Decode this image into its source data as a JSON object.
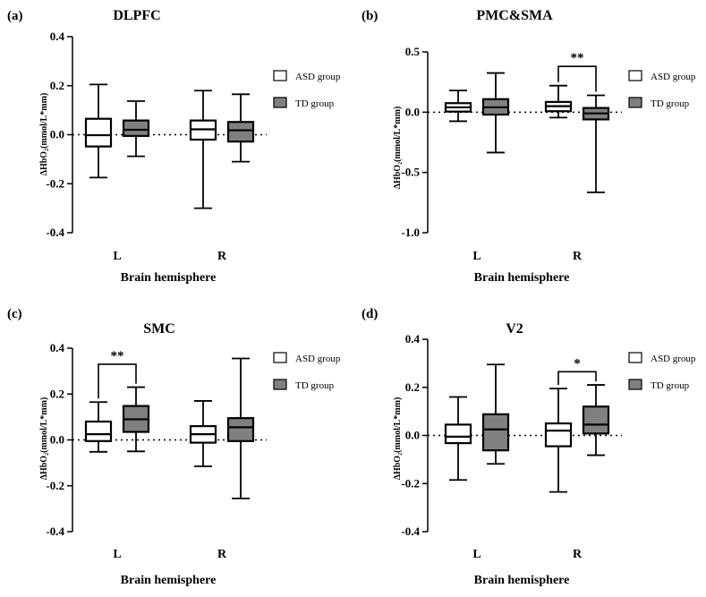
{
  "chart_data": [
    {
      "type": "box",
      "panel": "(a)",
      "title": "DLPFC",
      "xlabel": "Brain hemisphere",
      "ylabel": "ΔHbO₂(mmol/L*mm)",
      "ylim": [
        -0.4,
        0.4
      ],
      "yticks": [
        -0.4,
        -0.2,
        0.0,
        0.2,
        0.4
      ],
      "ytick_labels": [
        "-0.4",
        "-0.2",
        "0.0",
        "0.2",
        "0.4"
      ],
      "categories": [
        "L",
        "R"
      ],
      "reference_line": 0,
      "legend": [
        {
          "label": "ASD group",
          "fill": "#ffffff"
        },
        {
          "label": "TD group",
          "fill": "#808080"
        }
      ],
      "series": [
        {
          "name": "ASD group",
          "fill": "#ffffff",
          "boxes": [
            {
              "min": -0.175,
              "q1": -0.048,
              "median": -0.002,
              "q3": 0.065,
              "max": 0.205
            },
            {
              "min": -0.3,
              "q1": -0.02,
              "median": 0.022,
              "q3": 0.058,
              "max": 0.18
            }
          ]
        },
        {
          "name": "TD group",
          "fill": "#808080",
          "boxes": [
            {
              "min": -0.088,
              "q1": -0.005,
              "median": 0.02,
              "q3": 0.058,
              "max": 0.137
            },
            {
              "min": -0.11,
              "q1": -0.028,
              "median": 0.018,
              "q3": 0.052,
              "max": 0.165
            }
          ]
        }
      ],
      "significance": []
    },
    {
      "type": "box",
      "panel": "(b)",
      "title": "PMC&SMA",
      "xlabel": "Brain hemisphere",
      "ylabel": "ΔHbO₂(mmol/L*mm)",
      "ylim": [
        -1.0,
        0.5
      ],
      "yticks": [
        -1.0,
        -0.5,
        0.0,
        0.5
      ],
      "ytick_labels": [
        "-1.0",
        "-0.5",
        "0.0",
        "0.5"
      ],
      "categories": [
        "L",
        "R"
      ],
      "reference_line": 0,
      "legend": [
        {
          "label": "ASD group",
          "fill": "#ffffff"
        },
        {
          "label": "TD group",
          "fill": "#808080"
        }
      ],
      "series": [
        {
          "name": "ASD group",
          "fill": "#ffffff",
          "boxes": [
            {
              "min": -0.075,
              "q1": 0.005,
              "median": 0.04,
              "q3": 0.075,
              "max": 0.18
            },
            {
              "min": -0.045,
              "q1": 0.008,
              "median": 0.05,
              "q3": 0.085,
              "max": 0.22
            }
          ]
        },
        {
          "name": "TD group",
          "fill": "#808080",
          "boxes": [
            {
              "min": -0.335,
              "q1": -0.02,
              "median": 0.04,
              "q3": 0.108,
              "max": 0.325
            },
            {
              "min": -0.665,
              "q1": -0.06,
              "median": -0.01,
              "q3": 0.035,
              "max": 0.14
            }
          ]
        }
      ],
      "significance": [
        {
          "category_index": 1,
          "label": "**",
          "y": 0.38
        }
      ]
    },
    {
      "type": "box",
      "panel": "(c)",
      "title": "SMC",
      "xlabel": "Brain hemisphere",
      "ylabel": "ΔHbO₂(mmol/L*mm)",
      "ylim": [
        -0.4,
        0.4
      ],
      "yticks": [
        -0.4,
        -0.2,
        0.0,
        0.2,
        0.4
      ],
      "ytick_labels": [
        "-0.4",
        "-0.2",
        "0.0",
        "0.2",
        "0.4"
      ],
      "categories": [
        "L",
        "R"
      ],
      "reference_line": 0,
      "legend": [
        {
          "label": "ASD group",
          "fill": "#ffffff"
        },
        {
          "label": "TD group",
          "fill": "#808080"
        }
      ],
      "series": [
        {
          "name": "ASD group",
          "fill": "#ffffff",
          "boxes": [
            {
              "min": -0.052,
              "q1": -0.005,
              "median": 0.025,
              "q3": 0.08,
              "max": 0.165
            },
            {
              "min": -0.115,
              "q1": -0.012,
              "median": 0.025,
              "q3": 0.06,
              "max": 0.17
            }
          ]
        },
        {
          "name": "TD group",
          "fill": "#808080",
          "boxes": [
            {
              "min": -0.05,
              "q1": 0.035,
              "median": 0.09,
              "q3": 0.148,
              "max": 0.23
            },
            {
              "min": -0.255,
              "q1": -0.005,
              "median": 0.055,
              "q3": 0.095,
              "max": 0.355
            }
          ]
        }
      ],
      "significance": [
        {
          "category_index": 0,
          "label": "**",
          "y": 0.33
        }
      ]
    },
    {
      "type": "box",
      "panel": "(d)",
      "title": "V2",
      "xlabel": "Brain hemisphere",
      "ylabel": "ΔHbO₂(mmol/L*mm)",
      "ylim": [
        -0.4,
        0.4
      ],
      "yticks": [
        -0.4,
        -0.2,
        0.0,
        0.2,
        0.4
      ],
      "ytick_labels": [
        "-0.4",
        "-0.2",
        "0.0",
        "0.2",
        "0.4"
      ],
      "categories": [
        "L",
        "R"
      ],
      "reference_line": 0,
      "legend": [
        {
          "label": "ASD group",
          "fill": "#ffffff"
        },
        {
          "label": "TD group",
          "fill": "#808080"
        }
      ],
      "series": [
        {
          "name": "ASD group",
          "fill": "#ffffff",
          "boxes": [
            {
              "min": -0.185,
              "q1": -0.032,
              "median": -0.005,
              "q3": 0.045,
              "max": 0.16
            },
            {
              "min": -0.235,
              "q1": -0.045,
              "median": 0.02,
              "q3": 0.05,
              "max": 0.195
            }
          ]
        },
        {
          "name": "TD group",
          "fill": "#808080",
          "boxes": [
            {
              "min": -0.118,
              "q1": -0.062,
              "median": 0.025,
              "q3": 0.088,
              "max": 0.295
            },
            {
              "min": -0.082,
              "q1": 0.008,
              "median": 0.045,
              "q3": 0.12,
              "max": 0.21
            }
          ]
        }
      ],
      "significance": [
        {
          "category_index": 1,
          "label": "*",
          "y": 0.265
        }
      ]
    }
  ]
}
